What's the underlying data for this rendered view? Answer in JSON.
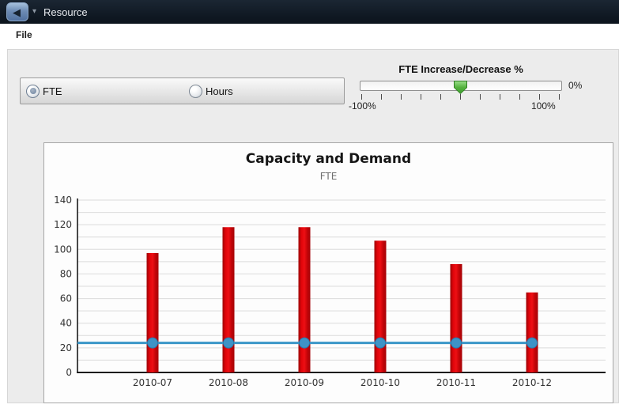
{
  "window": {
    "title": "Resource"
  },
  "menu": {
    "items": [
      "File"
    ]
  },
  "controls": {
    "unit_toggle": {
      "options": [
        {
          "label": "FTE",
          "selected": true
        },
        {
          "label": "Hours",
          "selected": false
        }
      ]
    },
    "slider": {
      "title": "FTE Increase/Decrease %",
      "value": 0,
      "value_label": "0%",
      "min": -100,
      "max": 100,
      "min_label": "-100%",
      "max_label": "100%",
      "thumb_color": "#55b23f"
    }
  },
  "chart_data": {
    "type": "bar",
    "title": "Capacity and Demand",
    "subtitle": "FTE",
    "categories": [
      "2010-07",
      "2010-08",
      "2010-09",
      "2010-10",
      "2010-11",
      "2010-12"
    ],
    "series": [
      {
        "name": "demand-bars",
        "type": "bar",
        "values": [
          97,
          118,
          118,
          107,
          88,
          65
        ],
        "color": "#d90408",
        "gradient": [
          "#9c0307",
          "#e0040a",
          "#ee0f14",
          "#c20408",
          "#a50307"
        ]
      },
      {
        "name": "capacity-line",
        "type": "line",
        "values": [
          24,
          24,
          24,
          24,
          24,
          24
        ],
        "color": "#3a96c8",
        "marker_fill": "#3e93c6",
        "marker_stroke": "#2779ab"
      }
    ],
    "ylim": [
      0,
      140
    ],
    "y_ticks": [
      0,
      20,
      40,
      60,
      80,
      100,
      120,
      140
    ],
    "grid_step": 10,
    "grid": true,
    "legend": false,
    "grid_color": "#dbdbdb",
    "axis_color": "#1a1a1a",
    "label_color": "#333333"
  }
}
